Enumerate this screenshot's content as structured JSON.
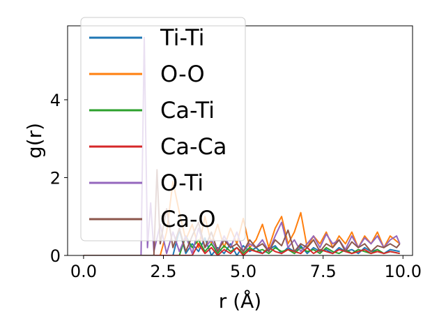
{
  "chart_data": {
    "type": "line",
    "title": "",
    "xlabel": "r (Å)",
    "ylabel": "g(r)",
    "xlim": [
      -0.5,
      10.3
    ],
    "ylim": [
      0,
      5.9
    ],
    "xticks": [
      0.0,
      2.5,
      5.0,
      7.5,
      10.0
    ],
    "xtick_labels": [
      "0.0",
      "2.5",
      "5.0",
      "7.5",
      "10.0"
    ],
    "yticks": [
      0,
      2,
      4
    ],
    "ytick_labels": [
      "0",
      "2",
      "4"
    ],
    "grid": false,
    "legend_position": "top-left",
    "series": [
      {
        "name": "Ti-Ti",
        "color": "#1f77b4",
        "x": [
          0,
          1.0,
          2.0,
          2.6,
          2.8,
          3.0,
          3.2,
          3.4,
          3.6,
          3.8,
          4.0,
          4.2,
          4.4,
          4.6,
          4.8,
          5.0,
          5.2,
          5.4,
          5.6,
          5.8,
          6.0,
          6.2,
          6.4,
          6.6,
          6.8,
          7.0,
          7.2,
          7.4,
          7.6,
          7.8,
          8.0,
          8.2,
          8.4,
          8.6,
          8.8,
          9.0,
          9.2,
          9.4,
          9.6,
          9.9
        ],
        "y": [
          0,
          0,
          0,
          0,
          0,
          0.65,
          0.05,
          0.3,
          0.1,
          0.45,
          0,
          0.2,
          0.05,
          0.3,
          0,
          0.25,
          0.1,
          0.2,
          0.05,
          0.15,
          0.25,
          0.05,
          0.2,
          0.1,
          0.25,
          0.05,
          0.2,
          0.1,
          0.15,
          0.05,
          0.2,
          0.1,
          0.15,
          0.05,
          0.2,
          0.1,
          0.15,
          0.05,
          0.15,
          0.1
        ]
      },
      {
        "name": "O-O",
        "color": "#ff7f0e",
        "x": [
          0,
          1.0,
          2.0,
          2.4,
          2.6,
          2.8,
          3.0,
          3.2,
          3.4,
          3.6,
          3.8,
          4.0,
          4.2,
          4.4,
          4.6,
          4.8,
          5.0,
          5.2,
          5.4,
          5.6,
          5.8,
          6.0,
          6.2,
          6.4,
          6.6,
          6.8,
          7.0,
          7.2,
          7.4,
          7.6,
          7.8,
          8.0,
          8.2,
          8.4,
          8.6,
          8.8,
          9.0,
          9.2,
          9.4,
          9.6,
          9.9
        ],
        "y": [
          0,
          0,
          0,
          0,
          0.6,
          1.9,
          1.1,
          0.4,
          0.8,
          0.2,
          1.0,
          0.3,
          0.8,
          0.2,
          0.7,
          0.3,
          0.95,
          0.2,
          0.4,
          0.8,
          0.2,
          0.7,
          1.0,
          0.3,
          0.6,
          1.1,
          0.2,
          0.5,
          0.3,
          0.6,
          0.2,
          0.5,
          0.3,
          0.6,
          0.2,
          0.5,
          0.3,
          0.6,
          0.2,
          0.5,
          0.3
        ]
      },
      {
        "name": "Ca-Ti",
        "color": "#2ca02c",
        "x": [
          0,
          1.0,
          2.0,
          2.8,
          3.0,
          3.2,
          3.4,
          3.6,
          3.8,
          4.0,
          4.2,
          4.4,
          4.6,
          4.8,
          5.0,
          5.2,
          5.4,
          5.6,
          5.8,
          6.0,
          6.2,
          6.4,
          6.6,
          6.8,
          7.0,
          7.2,
          7.4,
          7.6,
          7.8,
          8.0,
          8.2,
          8.4,
          8.6,
          8.8,
          9.0,
          9.2,
          9.4,
          9.6,
          9.9
        ],
        "y": [
          0,
          0,
          0,
          0,
          0,
          0.5,
          0.2,
          0.4,
          0.1,
          0.3,
          0.05,
          0.25,
          0.1,
          0.2,
          0.05,
          0.2,
          0.1,
          0.15,
          0.05,
          0.2,
          0.1,
          0.15,
          0.05,
          0.2,
          0.1,
          0.15,
          0.05,
          0.2,
          0.1,
          0.05,
          0.15,
          0.05,
          0.15,
          0.1,
          0.05,
          0.15,
          0.05,
          0.1,
          0.05
        ]
      },
      {
        "name": "Ca-Ca",
        "color": "#d62728",
        "x": [
          0,
          1.0,
          2.0,
          3.0,
          3.4,
          3.6,
          3.8,
          4.0,
          4.2,
          4.4,
          4.6,
          4.8,
          5.0,
          5.2,
          5.4,
          5.6,
          5.8,
          6.0,
          6.2,
          6.4,
          6.6,
          6.8,
          7.0,
          7.2,
          7.4,
          7.6,
          7.8,
          8.0,
          8.2,
          8.4,
          8.6,
          8.8,
          9.0,
          9.2,
          9.4,
          9.6,
          9.9
        ],
        "y": [
          0,
          0,
          0,
          0,
          0,
          0.3,
          0.05,
          0.2,
          0,
          0.15,
          0.05,
          0.2,
          0,
          0.15,
          0.1,
          0.05,
          0.2,
          0.1,
          0.05,
          0.15,
          0.1,
          0.05,
          0.2,
          0.05,
          0.15,
          0.1,
          0.05,
          0.15,
          0.1,
          0.05,
          0.1,
          0.15,
          0.05,
          0.1,
          0.05,
          0.1,
          0.05
        ]
      },
      {
        "name": "O-Ti",
        "color": "#9467bd",
        "x": [
          0,
          1.0,
          1.8,
          1.9,
          2.0,
          2.1,
          2.2,
          2.4,
          2.6,
          2.8,
          3.0,
          3.2,
          3.4,
          3.6,
          3.8,
          4.0,
          4.2,
          4.4,
          4.6,
          4.8,
          5.0,
          5.2,
          5.4,
          5.6,
          5.8,
          6.0,
          6.2,
          6.4,
          6.6,
          6.8,
          7.0,
          7.2,
          7.4,
          7.6,
          7.8,
          8.0,
          8.2,
          8.4,
          8.6,
          8.8,
          9.0,
          9.2,
          9.4,
          9.6,
          9.8,
          9.9
        ],
        "y": [
          0,
          0,
          0,
          5.6,
          0.2,
          1.35,
          0.1,
          0.8,
          0.05,
          0.6,
          0.1,
          0.5,
          0.05,
          0.7,
          0.2,
          0.4,
          0.1,
          0.5,
          0.2,
          0.6,
          0.1,
          0.3,
          0.2,
          0.4,
          0.1,
          0.5,
          0.85,
          0.2,
          0.4,
          0.1,
          0.3,
          0.5,
          0.2,
          0.55,
          0.3,
          0.4,
          0.15,
          0.5,
          0.2,
          0.45,
          0.3,
          0.5,
          0.2,
          0.4,
          0.5,
          0.3
        ]
      },
      {
        "name": "Ca-O",
        "color": "#8c564b",
        "x": [
          0,
          1.0,
          2.0,
          2.2,
          2.3,
          2.4,
          2.6,
          2.8,
          3.0,
          3.2,
          3.4,
          3.6,
          3.8,
          4.0,
          4.2,
          4.4,
          4.6,
          4.8,
          5.0,
          5.2,
          5.4,
          5.6,
          5.8,
          6.0,
          6.2,
          6.4,
          6.6,
          6.8,
          7.0,
          7.2,
          7.4,
          7.6,
          7.8,
          8.0,
          8.2,
          8.4,
          8.6,
          8.8,
          9.0,
          9.2,
          9.4,
          9.6,
          9.8,
          9.9
        ],
        "y": [
          0,
          0,
          0,
          0,
          2.2,
          0.3,
          1.2,
          0.2,
          0.7,
          0.1,
          0.5,
          0.85,
          0.2,
          0.6,
          0.1,
          0.4,
          0.2,
          0.3,
          0.1,
          0.4,
          0.2,
          0.3,
          0.1,
          0.4,
          0.25,
          0.65,
          0.1,
          0.3,
          0.2,
          0.4,
          0.1,
          0.3,
          0.2,
          0.4,
          0.1,
          0.35,
          0.2,
          0.3,
          0.1,
          0.25,
          0.2,
          0.3,
          0.2,
          0.3
        ]
      }
    ]
  }
}
